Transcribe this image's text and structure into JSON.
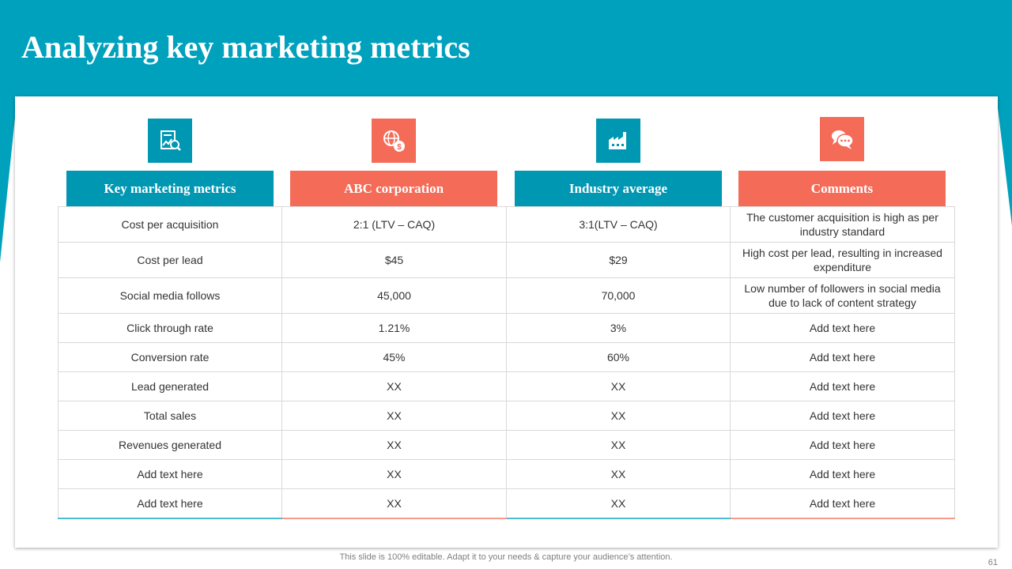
{
  "slide": {
    "title": "Analyzing key marketing metrics",
    "footer": "This slide is 100% editable. Adapt it to your needs & capture your audience’s attention.",
    "page_number": "61",
    "colors": {
      "teal": "#00a1bd",
      "teal_dark": "#0097b2",
      "coral": "#f46b58"
    }
  },
  "columns": [
    {
      "label": "Key marketing metrics",
      "icon": "analytics-report-icon",
      "color": "teal"
    },
    {
      "label": "ABC corporation",
      "icon": "global-finance-icon",
      "color": "coral"
    },
    {
      "label": "Industry average",
      "icon": "factory-icon",
      "color": "teal"
    },
    {
      "label": "Comments",
      "icon": "chat-bubbles-icon",
      "color": "coral"
    }
  ],
  "rows": [
    {
      "metric": "Cost per acquisition",
      "abc": "2:1 (LTV – CAQ)",
      "industry": "3:1(LTV – CAQ)",
      "comment": "The customer acquisition is high as per industry standard"
    },
    {
      "metric": "Cost per lead",
      "abc": "$45",
      "industry": "$29",
      "comment": "High cost per lead, resulting in increased expenditure"
    },
    {
      "metric": "Social media follows",
      "abc": "45,000",
      "industry": "70,000",
      "comment": "Low number of followers in social media due to lack of content strategy"
    },
    {
      "metric": "Click through rate",
      "abc": "1.21%",
      "industry": "3%",
      "comment": "Add text here"
    },
    {
      "metric": "Conversion rate",
      "abc": "45%",
      "industry": "60%",
      "comment": "Add text here"
    },
    {
      "metric": "Lead generated",
      "abc": "XX",
      "industry": "XX",
      "comment": "Add text here"
    },
    {
      "metric": "Total sales",
      "abc": "XX",
      "industry": "XX",
      "comment": "Add text here"
    },
    {
      "metric": "Revenues generated",
      "abc": "XX",
      "industry": "XX",
      "comment": "Add text here"
    },
    {
      "metric": "Add text here",
      "abc": "XX",
      "industry": "XX",
      "comment": "Add text here"
    },
    {
      "metric": "Add text here",
      "abc": "XX",
      "industry": "XX",
      "comment": "Add text here"
    }
  ]
}
